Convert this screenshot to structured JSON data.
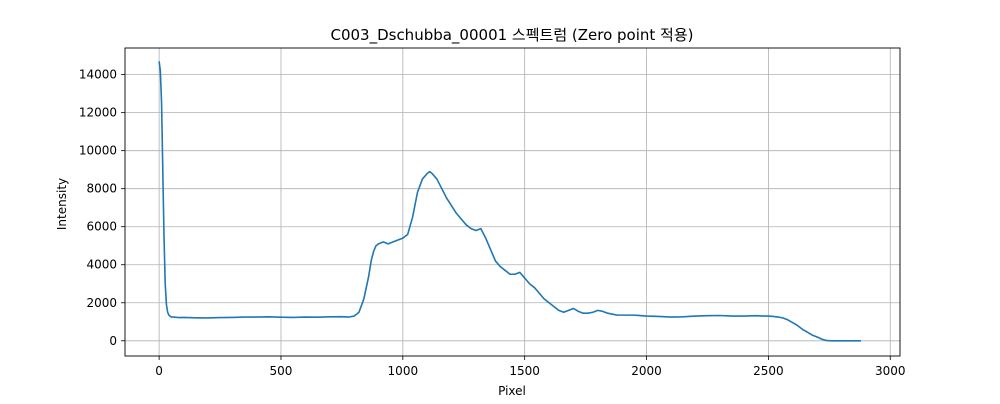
{
  "chart_data": {
    "type": "line",
    "title": "C003_Dschubba_00001 스펙트럼 (Zero point 적용)",
    "xlabel": "Pixel",
    "ylabel": "Intensity",
    "xlim": [
      -140,
      3040
    ],
    "ylim": [
      -800,
      15400
    ],
    "xticks": [
      0,
      500,
      1000,
      1500,
      2000,
      2500,
      3000
    ],
    "yticks": [
      0,
      2000,
      4000,
      6000,
      8000,
      10000,
      12000,
      14000
    ],
    "grid": true,
    "line_color": "#1f77b4",
    "series": [
      {
        "x": [
          0,
          5,
          10,
          15,
          20,
          25,
          30,
          35,
          40,
          45,
          50,
          60,
          80,
          100,
          150,
          200,
          250,
          300,
          350,
          400,
          450,
          500,
          550,
          600,
          650,
          700,
          750,
          780,
          800,
          820,
          840,
          860,
          870,
          880,
          890,
          900,
          920,
          940,
          960,
          980,
          1000,
          1020,
          1040,
          1060,
          1080,
          1100,
          1110,
          1120,
          1140,
          1160,
          1180,
          1200,
          1220,
          1240,
          1260,
          1280,
          1300,
          1320,
          1340,
          1360,
          1380,
          1400,
          1420,
          1440,
          1460,
          1480,
          1500,
          1520,
          1540,
          1560,
          1580,
          1600,
          1620,
          1640,
          1660,
          1680,
          1700,
          1720,
          1740,
          1760,
          1780,
          1800,
          1820,
          1840,
          1860,
          1880,
          1900,
          1950,
          2000,
          2050,
          2100,
          2150,
          2200,
          2250,
          2300,
          2350,
          2400,
          2450,
          2480,
          2500,
          2520,
          2540,
          2560,
          2580,
          2600,
          2620,
          2640,
          2660,
          2680,
          2700,
          2720,
          2740,
          2760,
          2780,
          2800,
          2850,
          2880
        ],
        "y": [
          14700,
          14200,
          12500,
          9000,
          5500,
          3000,
          1900,
          1500,
          1350,
          1300,
          1250,
          1250,
          1220,
          1230,
          1210,
          1200,
          1220,
          1230,
          1250,
          1250,
          1260,
          1240,
          1230,
          1250,
          1240,
          1260,
          1270,
          1250,
          1300,
          1500,
          2200,
          3400,
          4200,
          4700,
          5000,
          5100,
          5200,
          5100,
          5200,
          5300,
          5400,
          5600,
          6500,
          7800,
          8500,
          8800,
          8900,
          8800,
          8500,
          8000,
          7500,
          7100,
          6700,
          6400,
          6100,
          5900,
          5800,
          5900,
          5400,
          4800,
          4200,
          3900,
          3700,
          3500,
          3500,
          3600,
          3300,
          3000,
          2800,
          2500,
          2200,
          2000,
          1800,
          1600,
          1500,
          1600,
          1700,
          1550,
          1450,
          1450,
          1500,
          1600,
          1550,
          1450,
          1400,
          1350,
          1350,
          1350,
          1300,
          1280,
          1250,
          1260,
          1300,
          1320,
          1330,
          1300,
          1300,
          1320,
          1300,
          1300,
          1280,
          1250,
          1200,
          1100,
          950,
          800,
          600,
          450,
          300,
          200,
          80,
          10,
          0,
          0,
          0,
          0,
          0
        ]
      }
    ]
  }
}
